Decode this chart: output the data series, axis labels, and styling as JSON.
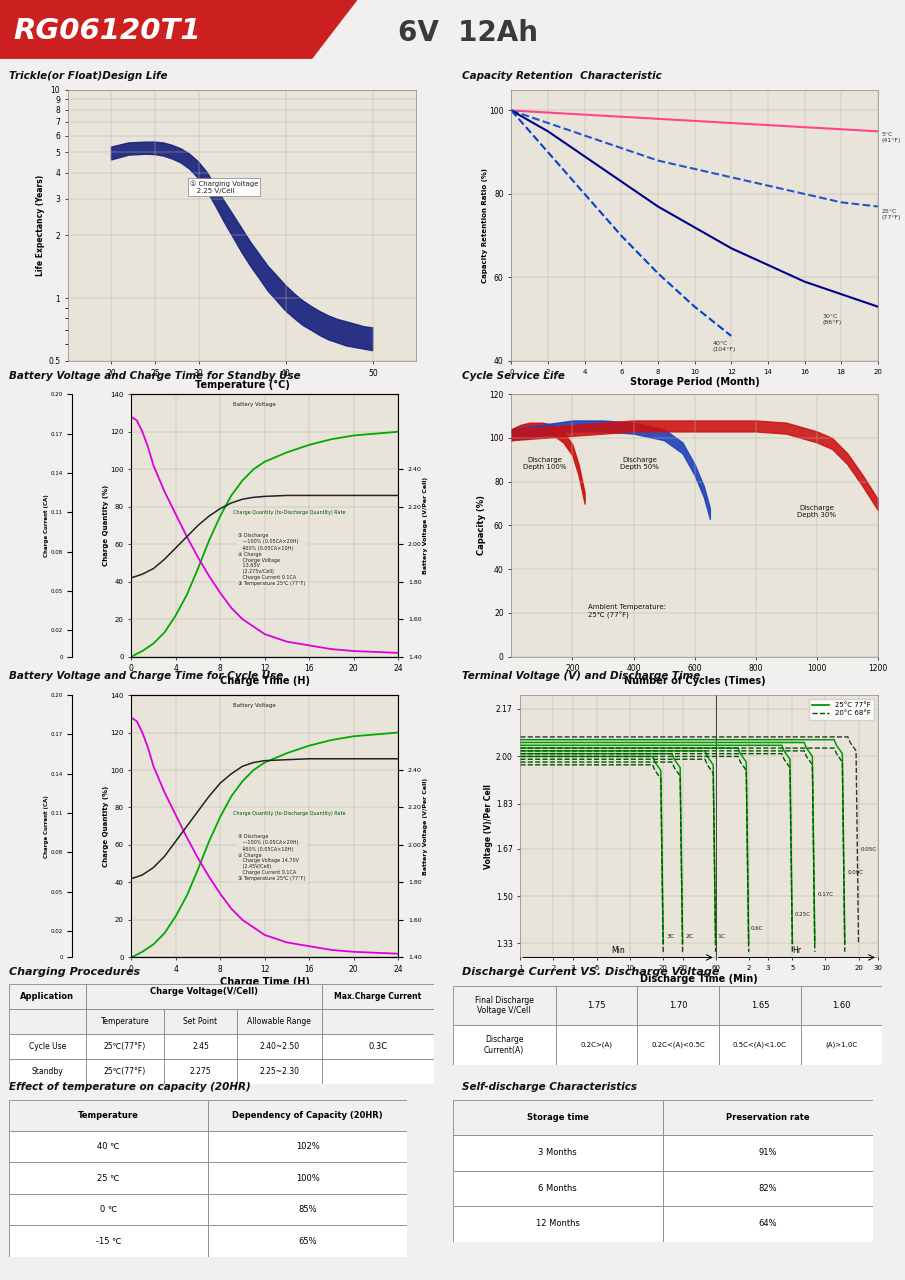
{
  "title_text": "RG06120T1",
  "title_subtitle": "6V  12Ah",
  "bg_color": "#f2f0ee",
  "graph_bg": "#e8e4da",
  "header_red": "#cc2020",
  "trickle_title": "Trickle(or Float)Design Life",
  "trickle_xlabel": "Temperature (°C)",
  "trickle_ylabel": "Life Expectancy (Years)",
  "capacity_title": "Capacity Retention  Characteristic",
  "capacity_xlabel": "Storage Period (Month)",
  "capacity_ylabel": "Capacity Retention Ratio (%)",
  "bvct_standby_title": "Battery Voltage and Charge Time for Standby Use",
  "bvct_cycle_title": "Battery Voltage and Charge Time for Cycle Use",
  "bvct_xlabel": "Charge Time (H)",
  "cycle_title": "Cycle Service Life",
  "cycle_xlabel": "Number of Cycles (Times)",
  "cycle_ylabel": "Capacity (%)",
  "terminal_title": "Terminal Voltage (V) and Discharge Time",
  "terminal_xlabel": "Discharge Time (Min)",
  "terminal_ylabel": "Voltage (V)/Per Cell",
  "charging_proc_title": "Charging Procedures",
  "discharge_vs_title": "Discharge Current VS. Discharge Voltage",
  "temp_effect_title": "Effect of temperature on capacity (20HR)",
  "temp_effect_data": [
    [
      "40 ℃",
      "102%"
    ],
    [
      "25 ℃",
      "100%"
    ],
    [
      "0 ℃",
      "85%"
    ],
    [
      "-15 ℃",
      "65%"
    ]
  ],
  "self_discharge_title": "Self-discharge Characteristics",
  "self_discharge_data": [
    [
      "3 Months",
      "91%"
    ],
    [
      "6 Months",
      "82%"
    ],
    [
      "12 Months",
      "64%"
    ]
  ],
  "discharge_vs_data": {
    "row1_label": "Final Discharge\nVoltage V/Cell",
    "row1_vals": [
      "1.75",
      "1.70",
      "1.65",
      "1.60"
    ],
    "row2_label": "Discharge\nCurrent(A)",
    "row2_vals": [
      "0.2C>(A)",
      "0.2C<(A)<0.5C",
      "0.5C<(A)<1.0C",
      "(A)>1.0C"
    ]
  }
}
